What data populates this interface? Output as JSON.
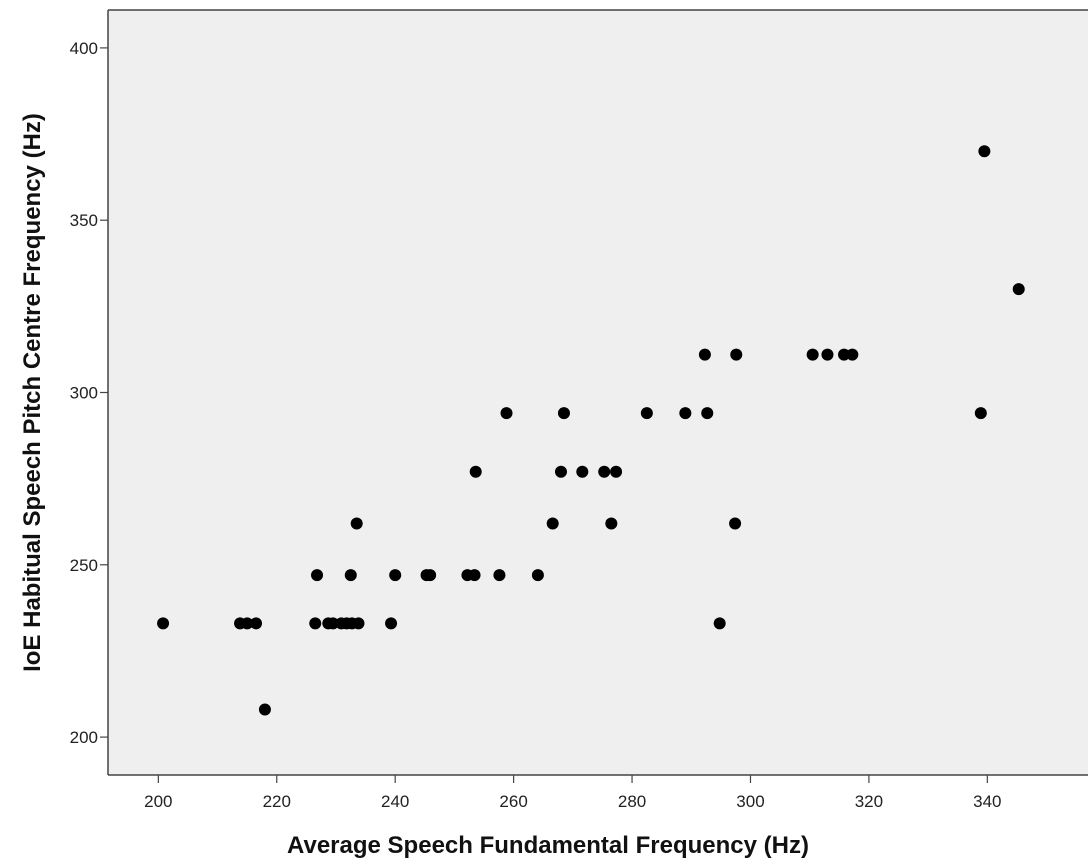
{
  "chart_data": {
    "type": "scatter",
    "xlabel": "Average Speech Fundamental Frequency (Hz)",
    "ylabel": "IoE Habitual Speech Pitch Centre Frequency (Hz)",
    "xlim": [
      191.5,
      357
    ],
    "ylim": [
      189,
      411
    ],
    "xticks": [
      200,
      220,
      240,
      260,
      280,
      300,
      320,
      340
    ],
    "yticks": [
      200,
      250,
      300,
      350,
      400
    ],
    "grid": false,
    "plot_background": "#efefef",
    "point_color": "#000000",
    "series": [
      {
        "x": [
          200.8,
          213.8,
          215.0,
          216.5,
          218.0,
          226.5,
          226.8,
          228.7,
          229.5,
          230.9,
          231.8,
          232.5,
          232.7,
          233.5,
          233.8,
          239.3,
          240.0,
          245.3,
          245.9,
          252.2,
          253.4,
          253.6,
          257.6,
          258.8,
          264.1,
          266.6,
          268.0,
          268.5,
          271.6,
          275.3,
          276.5,
          277.3,
          282.5,
          289.0,
          292.3,
          292.7,
          294.8,
          297.4,
          297.6,
          310.5,
          313.0,
          315.8,
          317.2,
          338.9,
          339.5,
          345.3
        ],
        "y": [
          233.0,
          233.0,
          233.0,
          233.0,
          208.0,
          233.0,
          247.0,
          233.0,
          233.0,
          233.0,
          233.0,
          247.0,
          233.0,
          262.0,
          233.0,
          233.0,
          247.0,
          247.0,
          247.0,
          247.0,
          247.0,
          277.0,
          247.0,
          294.0,
          247.0,
          262.0,
          277.0,
          294.0,
          277.0,
          277.0,
          262.0,
          277.0,
          294.0,
          294.0,
          311.0,
          294.0,
          233.0,
          262.0,
          311.0,
          311.0,
          311.0,
          311.0,
          311.0,
          294.0,
          370.0,
          330.0
        ]
      }
    ]
  }
}
